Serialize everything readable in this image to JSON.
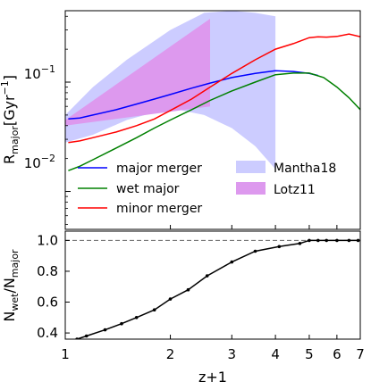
{
  "chart_data": [
    {
      "type": "line",
      "panel": "top",
      "xscale": "log",
      "yscale": "log",
      "xlim": [
        1,
        7
      ],
      "ylim": [
        0.0045,
        0.45
      ],
      "ylabel_main": "R",
      "ylabel_sub": "major",
      "ylabel_unit": "[Gyr",
      "ylabel_sup": "−1",
      "ylabel_close": "]",
      "ytick_labels": [
        {
          "value": 0.01,
          "base": "10",
          "exp": "−2"
        },
        {
          "value": 0.1,
          "base": "10",
          "exp": "−1"
        }
      ],
      "legend_placement": "lower center",
      "series": [
        {
          "name": "major merger",
          "color": "#0000ff",
          "x": [
            1.02,
            1.1,
            1.2,
            1.4,
            1.6,
            1.8,
            2.0,
            2.3,
            2.6,
            3.0,
            3.5,
            4.0,
            4.5,
            5.0,
            5.3
          ],
          "y": [
            0.046,
            0.047,
            0.05,
            0.056,
            0.063,
            0.07,
            0.077,
            0.088,
            0.098,
            0.11,
            0.12,
            0.127,
            0.125,
            0.12,
            0.115
          ]
        },
        {
          "name": "wet major",
          "color": "#008000",
          "x": [
            1.02,
            1.1,
            1.2,
            1.4,
            1.6,
            1.8,
            2.0,
            2.3,
            2.6,
            3.0,
            3.5,
            4.0,
            4.5,
            5.0,
            5.5,
            6.0,
            6.5,
            7.0
          ],
          "y": [
            0.0155,
            0.017,
            0.0195,
            0.025,
            0.031,
            0.038,
            0.045,
            0.056,
            0.068,
            0.083,
            0.1,
            0.117,
            0.121,
            0.121,
            0.11,
            0.09,
            0.072,
            0.056
          ]
        },
        {
          "name": "minor merger",
          "color": "#ff0000",
          "x": [
            1.02,
            1.1,
            1.2,
            1.4,
            1.6,
            1.8,
            2.0,
            2.3,
            2.6,
            3.0,
            3.5,
            4.0,
            4.5,
            5.0,
            5.3,
            5.6,
            6.0,
            6.5,
            7.0
          ],
          "y": [
            0.028,
            0.029,
            0.031,
            0.035,
            0.04,
            0.046,
            0.055,
            0.07,
            0.09,
            0.12,
            0.16,
            0.2,
            0.225,
            0.255,
            0.26,
            0.258,
            0.262,
            0.275,
            0.26
          ]
        }
      ],
      "bands": [
        {
          "name": "Mantha18",
          "color": "#ccccff",
          "x": [
            1.0,
            1.2,
            1.5,
            2.0,
            2.5,
            3.0,
            3.5,
            4.0
          ],
          "y_low": [
            0.028,
            0.033,
            0.045,
            0.058,
            0.05,
            0.038,
            0.026,
            0.016
          ],
          "y_high": [
            0.05,
            0.09,
            0.16,
            0.3,
            0.43,
            0.45,
            0.43,
            0.4
          ]
        },
        {
          "name": "Lotz11",
          "color": "#dd99ee",
          "x": [
            1.0,
            2.6
          ],
          "y_low": [
            0.04,
            0.06
          ],
          "y_high": [
            0.045,
            0.38
          ]
        }
      ]
    },
    {
      "type": "line",
      "panel": "bottom",
      "xscale": "log",
      "xlim": [
        1,
        7
      ],
      "ylim": [
        0.36,
        1.06
      ],
      "xlabel": "z+1",
      "ylabel_main": "N",
      "ylabel_sub1": "wet",
      "ylabel_mid": "/N",
      "ylabel_sub2": "major",
      "xticks": [
        1,
        2,
        3,
        4,
        5,
        6,
        7
      ],
      "yticks": [
        0.4,
        0.6,
        0.8,
        1.0
      ],
      "ytick_labels": [
        "0.4",
        "0.6",
        "0.8",
        "1.0"
      ],
      "reference_line": 1.0,
      "series": [
        {
          "color": "#000000",
          "markers": true,
          "x": [
            1.08,
            1.15,
            1.3,
            1.45,
            1.6,
            1.8,
            2.0,
            2.25,
            2.55,
            3.0,
            3.5,
            4.1,
            4.7,
            5.0,
            5.3,
            5.6,
            6.0,
            6.5,
            6.9
          ],
          "y": [
            0.36,
            0.38,
            0.42,
            0.46,
            0.5,
            0.55,
            0.62,
            0.68,
            0.77,
            0.86,
            0.93,
            0.96,
            0.98,
            1.0,
            1.0,
            1.0,
            1.0,
            1.0,
            1.0
          ]
        }
      ]
    }
  ]
}
